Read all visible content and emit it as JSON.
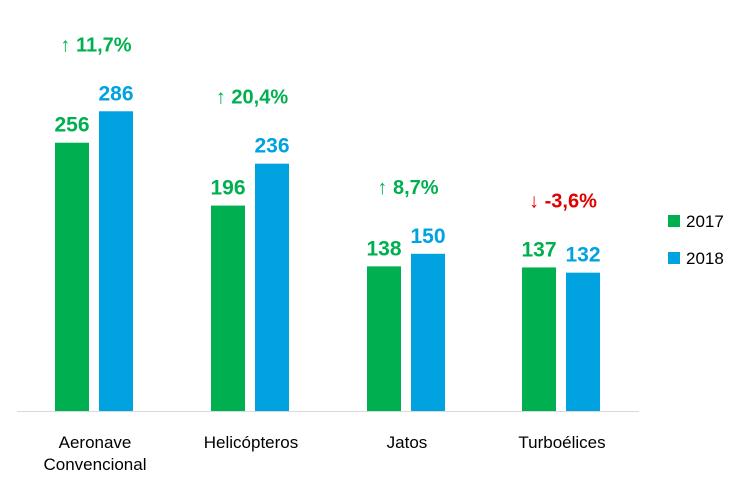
{
  "chart_data": {
    "type": "bar",
    "categories": [
      "Aeronave Convencional",
      "Helicópteros",
      "Jatos",
      "Turboélices"
    ],
    "category_labels": [
      [
        "Aeronave",
        "Convencional"
      ],
      [
        "Helicópteros"
      ],
      [
        "Jatos"
      ],
      [
        "Turboélices"
      ]
    ],
    "series": [
      {
        "name": "2017",
        "values": [
          256,
          196,
          138,
          137
        ],
        "color": "#00b050"
      },
      {
        "name": "2018",
        "values": [
          286,
          236,
          150,
          132
        ],
        "color": "#00a2e0"
      }
    ],
    "changes": [
      {
        "text": "↑ 11,7%",
        "direction": "up",
        "color": "#00b050"
      },
      {
        "text": "↑ 20,4%",
        "direction": "up",
        "color": "#00b050"
      },
      {
        "text": "↑ 8,7%",
        "direction": "up",
        "color": "#00b050"
      },
      {
        "text": "↓ -3,6%",
        "direction": "down",
        "color": "#e00000"
      }
    ],
    "title": "",
    "xlabel": "",
    "ylabel": "",
    "ylim": [
      0,
      320
    ],
    "grid": false,
    "legend_position": "right",
    "axis_color": "#d9d9d9",
    "tick_label_color": "#000000"
  }
}
